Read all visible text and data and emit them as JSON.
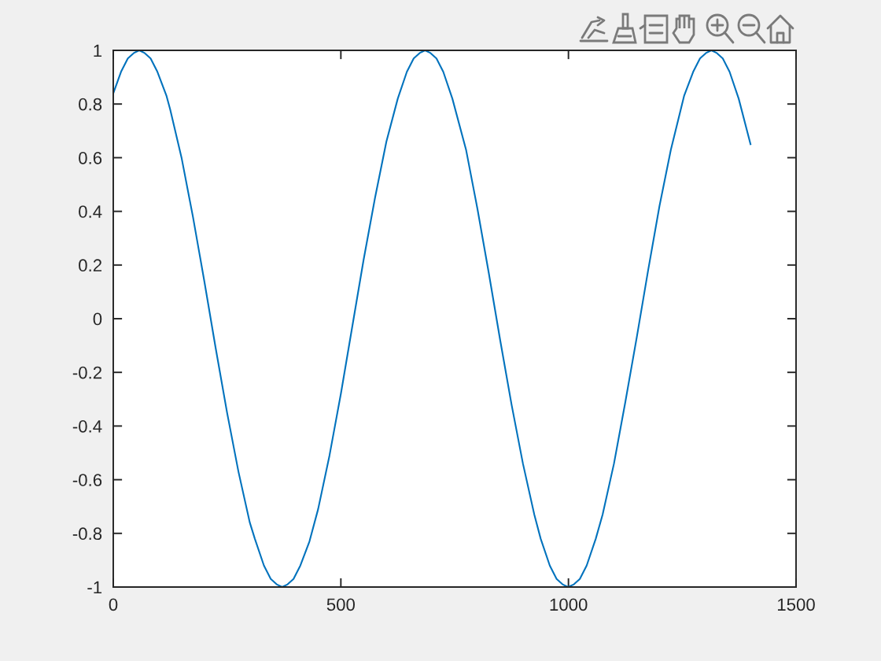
{
  "chart_data": {
    "type": "line",
    "color": "#0072bd",
    "marker": "none",
    "line_style": "solid",
    "x": [
      0,
      17,
      32,
      45,
      57,
      69,
      82,
      97,
      117,
      125,
      150,
      175,
      200,
      225,
      250,
      275,
      300,
      311,
      331,
      346,
      359,
      371,
      383,
      396,
      411,
      431,
      450,
      475,
      500,
      525,
      550,
      575,
      600,
      625,
      645,
      660,
      673,
      685,
      697,
      710,
      725,
      745,
      775,
      800,
      825,
      850,
      875,
      900,
      925,
      939,
      959,
      974,
      987,
      999,
      1012,
      1025,
      1040,
      1060,
      1075,
      1100,
      1125,
      1150,
      1175,
      1200,
      1225,
      1254,
      1274,
      1289,
      1302,
      1314,
      1326,
      1339,
      1354,
      1374,
      1400
    ],
    "values": [
      0.84,
      0.92,
      0.97,
      0.99,
      1,
      0.99,
      0.97,
      0.92,
      0.83,
      0.78,
      0.6,
      0.38,
      0.14,
      -0.11,
      -0.35,
      -0.57,
      -0.76,
      -0.82,
      -0.92,
      -0.97,
      -0.99,
      -1,
      -0.99,
      -0.97,
      -0.92,
      -0.83,
      -0.71,
      -0.51,
      -0.28,
      -0.03,
      0.22,
      0.45,
      0.66,
      0.82,
      0.92,
      0.97,
      0.99,
      1,
      0.99,
      0.97,
      0.92,
      0.82,
      0.63,
      0.41,
      0.17,
      -0.08,
      -0.32,
      -0.54,
      -0.73,
      -0.82,
      -0.92,
      -0.97,
      -0.99,
      -1,
      -0.99,
      -0.97,
      -0.92,
      -0.82,
      -0.73,
      -0.54,
      -0.31,
      -0.07,
      0.18,
      0.42,
      0.63,
      0.83,
      0.92,
      0.97,
      0.99,
      1,
      0.99,
      0.97,
      0.92,
      0.82,
      0.65
    ],
    "xlim": [
      0,
      1500
    ],
    "ylim": [
      -1,
      1
    ],
    "xticks": [
      0,
      500,
      1000,
      1500
    ],
    "yticks": [
      -1,
      -0.8,
      -0.6,
      -0.4,
      -0.2,
      0,
      0.2,
      0.4,
      0.6,
      0.8,
      1
    ]
  }
}
